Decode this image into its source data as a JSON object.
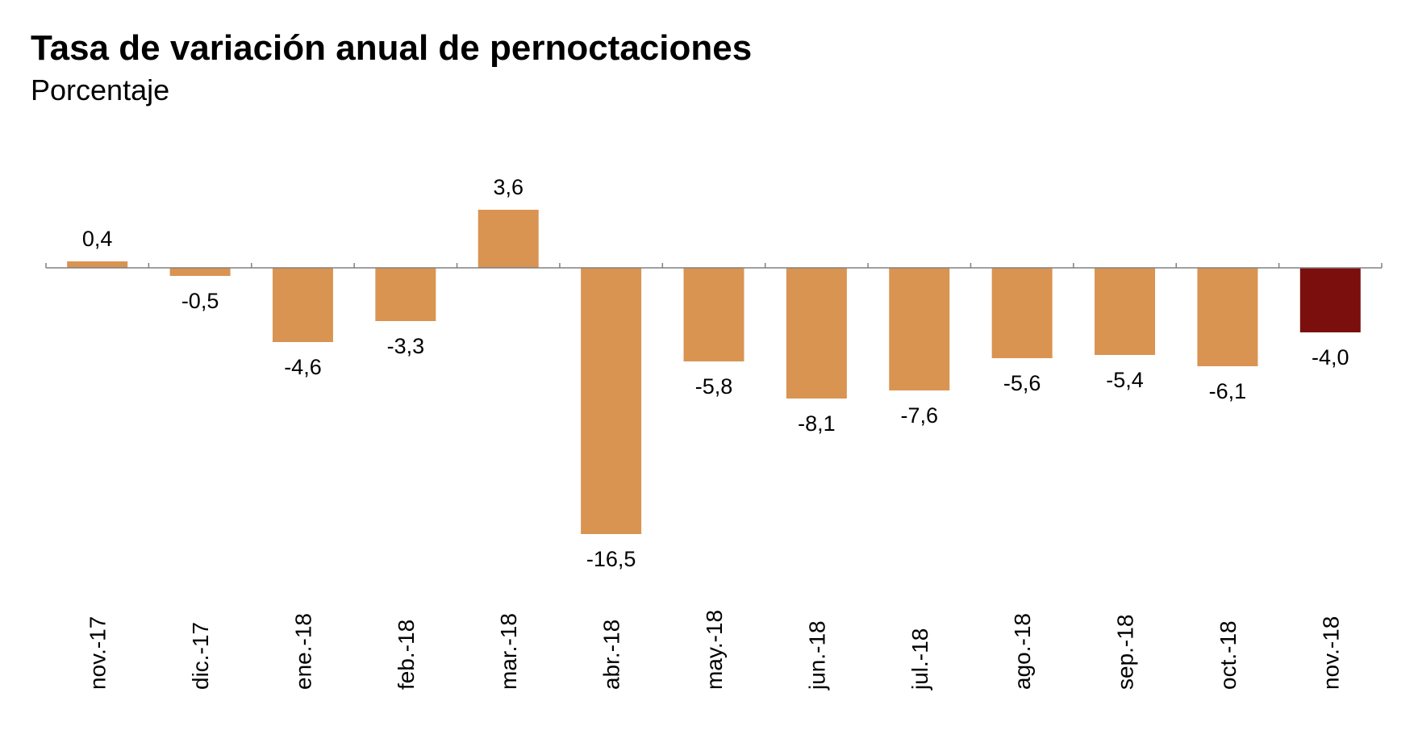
{
  "chart_data": {
    "type": "bar",
    "title": "Tasa de variación anual de pernoctaciones",
    "subtitle": "Porcentaje",
    "xlabel": "",
    "ylabel": "",
    "categories": [
      "nov.-17",
      "dic.-17",
      "ene.-18",
      "feb.-18",
      "mar.-18",
      "abr.-18",
      "may.-18",
      "jun.-18",
      "jul.-18",
      "ago.-18",
      "sep.-18",
      "oct.-18",
      "nov.-18"
    ],
    "values": [
      0.4,
      -0.5,
      -4.6,
      -3.3,
      3.6,
      -16.5,
      -5.8,
      -8.1,
      -7.6,
      -5.6,
      -5.4,
      -6.1,
      -4.0
    ],
    "value_labels": [
      "0,4",
      "-0,5",
      "-4,6",
      "-3,3",
      "3,6",
      "-16,5",
      "-5,8",
      "-8,1",
      "-7,6",
      "-5,6",
      "-5,4",
      "-6,1",
      "-4,0"
    ],
    "ylim": [
      -16.5,
      3.6
    ],
    "grid": false,
    "legend": "none",
    "colors": {
      "bar": "#D99452",
      "highlight": "#7B0F0E",
      "axis": "#808080"
    },
    "highlight_index": 12
  }
}
